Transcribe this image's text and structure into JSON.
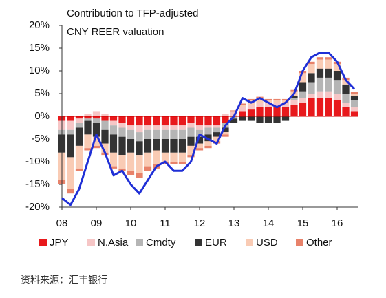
{
  "chart_data": {
    "type": "stacked_bar_line",
    "title": [
      "Contribution to TFP-adjusted",
      "CNY REER valuation"
    ],
    "x": [
      2008,
      2008.25,
      2008.5,
      2008.75,
      2009,
      2009.25,
      2009.5,
      2009.75,
      2010,
      2010.25,
      2010.5,
      2010.75,
      2011,
      2011.25,
      2011.5,
      2011.75,
      2012,
      2012.25,
      2012.5,
      2012.75,
      2013,
      2013.25,
      2013.5,
      2013.75,
      2014,
      2014.25,
      2014.5,
      2014.75,
      2015,
      2015.25,
      2015.5,
      2015.75,
      2016,
      2016.25,
      2016.5
    ],
    "series": [
      {
        "name": "JPY",
        "color": "#e8191c",
        "values": [
          -1,
          -1,
          -0.5,
          -0.5,
          -0.5,
          -1,
          -1,
          -1.5,
          -2,
          -2,
          -2,
          -2,
          -2,
          -2,
          -2,
          -1.5,
          -2,
          -2,
          -2,
          -1.5,
          0,
          1,
          1.5,
          2,
          2,
          2,
          2,
          2.5,
          3,
          4,
          4,
          4,
          3.5,
          2,
          1
        ]
      },
      {
        "name": "N.Asia",
        "color": "#f6c6c6",
        "values": [
          -2,
          -2,
          -1,
          0.5,
          1,
          0.5,
          -1,
          -1,
          -1,
          -1.5,
          -1,
          -1,
          -1,
          -1,
          -1,
          -1,
          -1,
          -0.5,
          -0.5,
          0.5,
          1,
          1,
          1,
          1,
          1,
          1,
          1,
          1,
          1,
          1,
          1.5,
          1.5,
          1.5,
          1,
          1
        ]
      },
      {
        "name": "Cmdty",
        "color": "#b5b5b5",
        "values": [
          -1,
          -1,
          -1,
          -0.5,
          -1,
          -2,
          -2,
          -2,
          -2,
          -2,
          -2,
          -2,
          -2,
          -2,
          -2,
          -2,
          -1.5,
          -1.5,
          -1,
          -1,
          -0.5,
          0,
          0,
          0,
          0,
          0,
          0,
          0.5,
          1.5,
          2.5,
          3,
          3,
          3,
          2,
          1.5
        ]
      },
      {
        "name": "EUR",
        "color": "#333333",
        "values": [
          -4,
          -5,
          -4,
          -3,
          -3,
          -3,
          -4,
          -4,
          -3,
          -3,
          -3,
          -2.5,
          -3,
          -3,
          -3,
          -2,
          -1.5,
          -1.5,
          -1,
          -1,
          -1,
          -1,
          -1,
          -1.5,
          -1.5,
          -1.5,
          -1,
          0.5,
          2,
          2,
          2,
          2,
          2,
          2,
          1
        ]
      },
      {
        "name": "USD",
        "color": "#f9cbb4",
        "values": [
          -6,
          -7,
          -5,
          -3,
          -2,
          -2,
          -3,
          -3,
          -4,
          -4,
          -3,
          -3,
          -2,
          -2,
          -2,
          -2,
          -1,
          -1,
          -1,
          -0.5,
          0,
          0.5,
          1,
          1,
          0.5,
          0.5,
          0.5,
          1,
          2,
          2,
          2,
          2,
          1.5,
          1,
          0.5
        ]
      },
      {
        "name": "Other",
        "color": "#e8826a",
        "values": [
          -1,
          -1,
          -0.5,
          -0.5,
          -0.5,
          -0.5,
          -0.5,
          -0.5,
          -1,
          -1,
          -1,
          -1,
          -0.5,
          -0.5,
          -0.5,
          -0.5,
          -0.5,
          -0.5,
          -0.5,
          -0.5,
          0.3,
          0.3,
          0.3,
          0.3,
          0.3,
          0.3,
          0.3,
          0.3,
          0.5,
          0.5,
          0.5,
          0.5,
          0.5,
          0.5,
          0.3
        ]
      }
    ],
    "line": {
      "color": "#1f2fd6",
      "values": [
        -18,
        -19.5,
        -16,
        -10,
        -4,
        -8,
        -13,
        -12,
        -15,
        -17,
        -14,
        -11,
        -10,
        -12,
        -12,
        -10,
        -4,
        -5,
        -6,
        -2,
        0,
        4,
        3,
        4,
        3,
        2,
        3,
        5,
        10,
        13,
        14,
        14,
        12,
        8,
        6
      ]
    },
    "xlim": [
      2008,
      2016.6
    ],
    "xticks": [
      {
        "value": 2008,
        "label": "08"
      },
      {
        "value": 2009,
        "label": "09"
      },
      {
        "value": 2010,
        "label": "10"
      },
      {
        "value": 2011,
        "label": "11"
      },
      {
        "value": 2012,
        "label": "12"
      },
      {
        "value": 2013,
        "label": "13"
      },
      {
        "value": 2014,
        "label": "14"
      },
      {
        "value": 2015,
        "label": "15"
      },
      {
        "value": 2016,
        "label": "16"
      }
    ],
    "ylim": [
      -20,
      20
    ],
    "yticks": [
      {
        "value": -20,
        "label": "-20%"
      },
      {
        "value": -15,
        "label": "-15%"
      },
      {
        "value": -10,
        "label": "-10%"
      },
      {
        "value": -5,
        "label": "-5%"
      },
      {
        "value": 0,
        "label": "0%"
      },
      {
        "value": 5,
        "label": "5%"
      },
      {
        "value": 10,
        "label": "10%"
      },
      {
        "value": 15,
        "label": "15%"
      },
      {
        "value": 20,
        "label": "20%"
      }
    ],
    "source": "资料来源：汇丰银行"
  }
}
